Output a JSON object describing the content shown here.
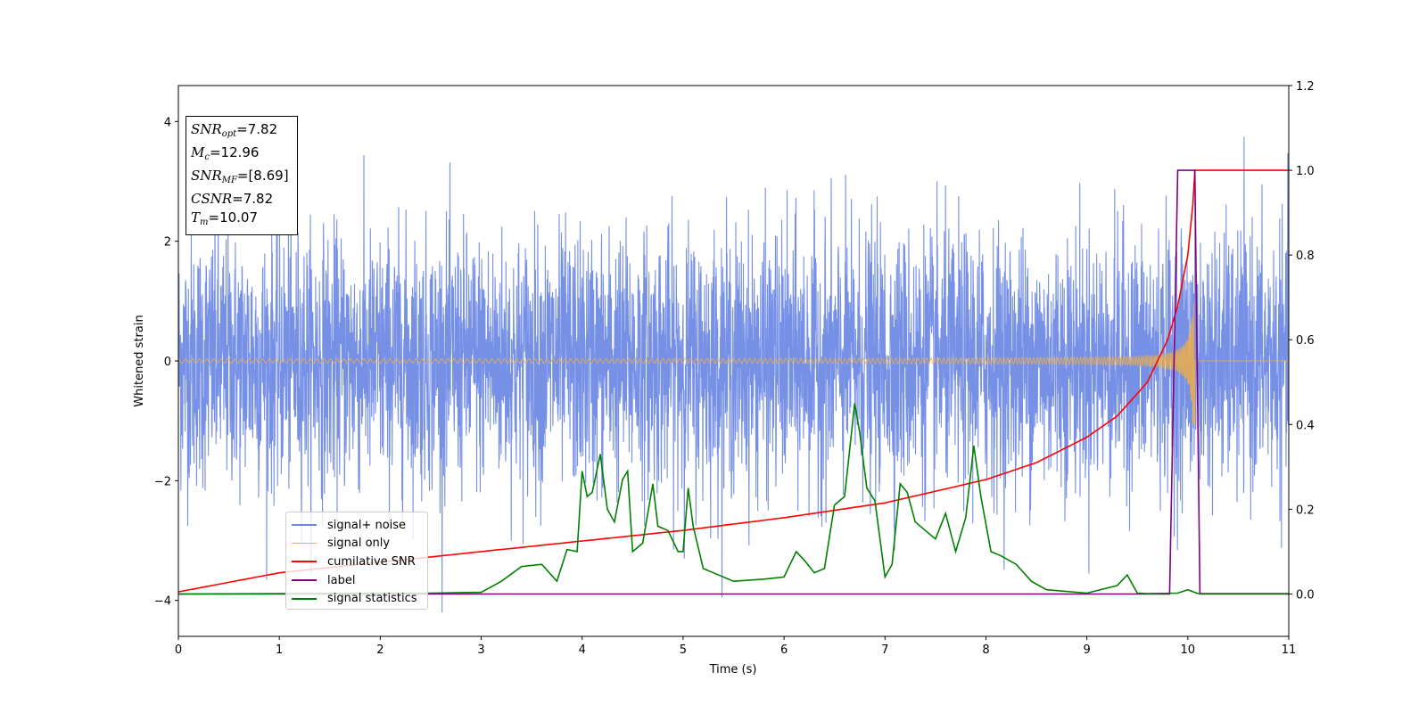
{
  "chart_data": {
    "type": "line",
    "xlabel": "Time (s)",
    "ylabel": "Whitened strain",
    "xlim": [
      0,
      11
    ],
    "ylim": [
      -4.6,
      4.6
    ],
    "y2lim": [
      -0.1,
      1.2
    ],
    "x_ticks": [
      "0",
      "1",
      "2",
      "3",
      "4",
      "5",
      "6",
      "7",
      "8",
      "9",
      "10",
      "11"
    ],
    "y_ticks": [
      "4",
      "2",
      "0",
      "−2",
      "−4"
    ],
    "y_tick_values": [
      4,
      2,
      0,
      -2,
      -4
    ],
    "y2_ticks": [
      "1.2",
      "1.0",
      "0.8",
      "0.6",
      "0.4",
      "0.2",
      "0.0"
    ],
    "y2_tick_values": [
      1.2,
      1.0,
      0.8,
      0.6,
      0.4,
      0.2,
      0.0
    ],
    "legend_position": "lower-left",
    "annotation": {
      "snr_opt": {
        "symbol": "SNR",
        "sub": "opt",
        "value": "=7.82"
      },
      "mc": {
        "symbol": "M",
        "sub": "c",
        "value": "=12.96"
      },
      "snr_mf": {
        "symbol": "SNR",
        "sub": "MF",
        "value": "=[8.69]"
      },
      "csnr": {
        "symbol": "CSNR",
        "value": "=7.82"
      },
      "tm": {
        "symbol": "T",
        "sub": "m",
        "value": "=10.07"
      }
    },
    "series": [
      {
        "name": "signal+ noise",
        "color": "#6a87e4",
        "axis": "left",
        "description_values": "noise amplitude approx 2 sigma band"
      },
      {
        "name": "signal only",
        "color": "#f5b041",
        "axis": "left",
        "amplitude_peak": 1.1,
        "merger_time": 10.07
      },
      {
        "name": "cumilative SNR",
        "color": "#ff0000",
        "axis": "right",
        "x": [
          0,
          1,
          2,
          3,
          4,
          5,
          6,
          7,
          8,
          8.5,
          9,
          9.3,
          9.6,
          9.8,
          9.9,
          10.0,
          10.05,
          10.07,
          10.2,
          11
        ],
        "y": [
          0.005,
          0.05,
          0.075,
          0.1,
          0.125,
          0.15,
          0.18,
          0.215,
          0.27,
          0.31,
          0.37,
          0.42,
          0.5,
          0.6,
          0.68,
          0.8,
          0.92,
          1.0,
          1.0,
          1.0
        ]
      },
      {
        "name": "label",
        "color": "#800080",
        "axis": "right",
        "x": [
          0,
          9.82,
          9.9,
          10.07,
          10.12,
          11
        ],
        "y": [
          0.0,
          0.0,
          1.0,
          1.0,
          0.0,
          0.0
        ]
      },
      {
        "name": "signal statistics",
        "color": "#008000",
        "axis": "right",
        "x": [
          0,
          2.5,
          3.0,
          3.2,
          3.4,
          3.6,
          3.75,
          3.85,
          3.95,
          4.0,
          4.05,
          4.1,
          4.18,
          4.25,
          4.32,
          4.4,
          4.45,
          4.5,
          4.6,
          4.7,
          4.75,
          4.85,
          4.95,
          5.0,
          5.05,
          5.1,
          5.2,
          5.3,
          5.5,
          5.8,
          6.0,
          6.12,
          6.2,
          6.3,
          6.4,
          6.5,
          6.6,
          6.7,
          6.75,
          6.82,
          6.9,
          7.0,
          7.07,
          7.15,
          7.22,
          7.3,
          7.4,
          7.5,
          7.6,
          7.7,
          7.8,
          7.88,
          7.95,
          8.05,
          8.15,
          8.3,
          8.45,
          8.6,
          9.0,
          9.3,
          9.4,
          9.5,
          9.6,
          9.9,
          10.0,
          10.1,
          11
        ],
        "y": [
          0.0,
          0.002,
          0.004,
          0.03,
          0.065,
          0.07,
          0.03,
          0.105,
          0.1,
          0.29,
          0.23,
          0.24,
          0.33,
          0.2,
          0.17,
          0.27,
          0.29,
          0.1,
          0.12,
          0.26,
          0.16,
          0.15,
          0.1,
          0.1,
          0.25,
          0.16,
          0.06,
          0.05,
          0.03,
          0.035,
          0.04,
          0.1,
          0.08,
          0.05,
          0.06,
          0.21,
          0.23,
          0.45,
          0.38,
          0.25,
          0.22,
          0.04,
          0.07,
          0.26,
          0.24,
          0.17,
          0.15,
          0.13,
          0.19,
          0.1,
          0.18,
          0.35,
          0.23,
          0.1,
          0.09,
          0.07,
          0.03,
          0.01,
          0.002,
          0.02,
          0.045,
          0.002,
          0.001,
          0.002,
          0.01,
          0.001,
          0.001
        ]
      }
    ]
  }
}
